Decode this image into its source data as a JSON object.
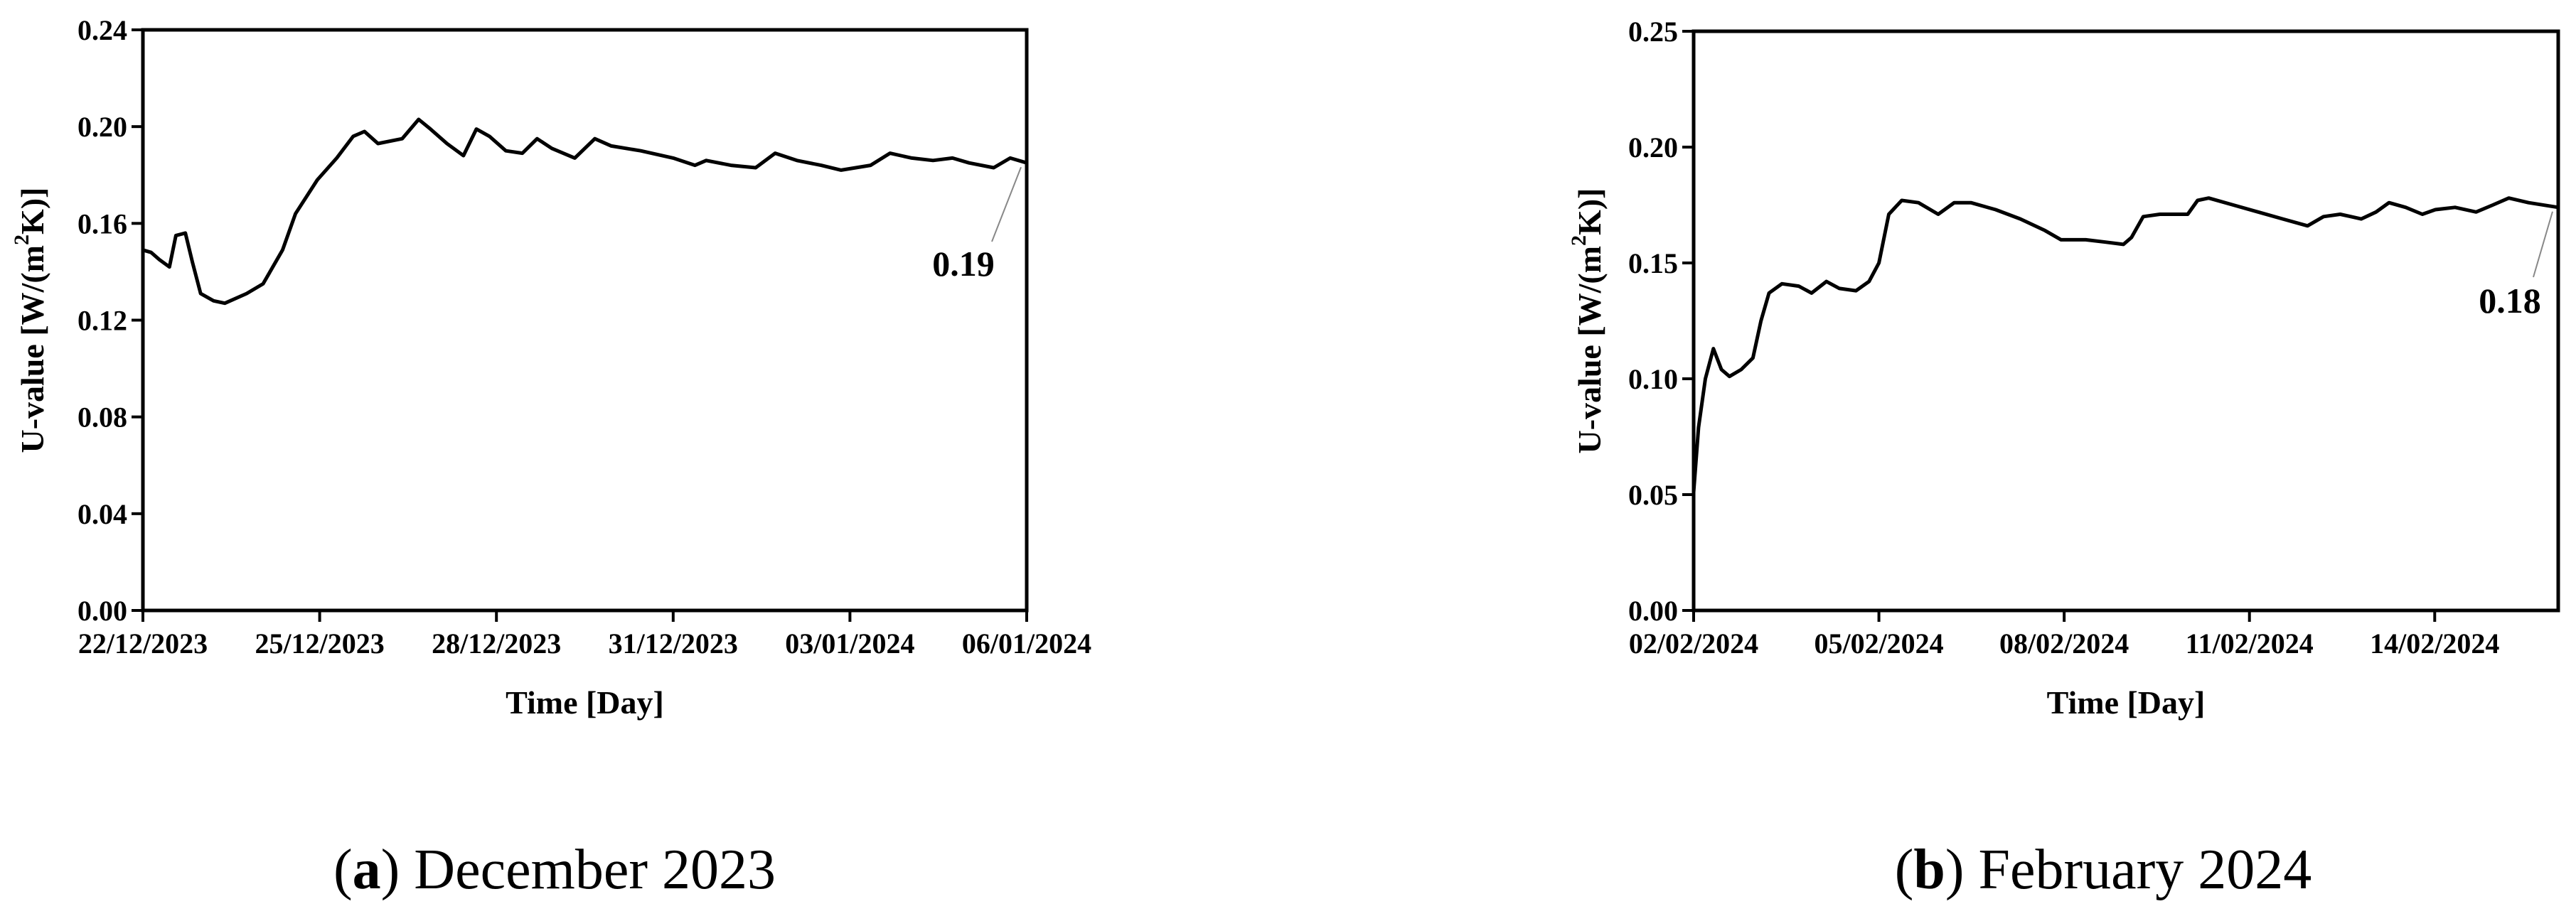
{
  "chart_data": [
    {
      "type": "line",
      "caption": [
        "(",
        "a",
        ") December 2023"
      ],
      "xlabel": "Time [Day]",
      "ylabel": [
        "U-value [W/(m",
        "2",
        "K)]"
      ],
      "annotation": "0.19",
      "color": "#000000",
      "xlim": [
        0,
        15
      ],
      "xticks": [
        {
          "value": 0,
          "label": "22/12/2023"
        },
        {
          "value": 3,
          "label": "25/12/2023"
        },
        {
          "value": 6,
          "label": "28/12/2023"
        },
        {
          "value": 9,
          "label": "31/12/2023"
        },
        {
          "value": 12,
          "label": "03/01/2024"
        },
        {
          "value": 15,
          "label": "06/01/2024"
        }
      ],
      "ylim": [
        0,
        0.24
      ],
      "yticks": [
        {
          "value": 0,
          "label": "0.00"
        },
        {
          "value": 0.04,
          "label": "0.04"
        },
        {
          "value": 0.08,
          "label": "0.08"
        },
        {
          "value": 0.12,
          "label": "0.12"
        },
        {
          "value": 0.16,
          "label": "0.16"
        },
        {
          "value": 0.2,
          "label": "0.20"
        },
        {
          "value": 0.24,
          "label": "0.24"
        }
      ],
      "x": [
        0,
        0.14,
        0.28,
        0.45,
        0.56,
        0.72,
        0.84,
        0.98,
        1.2,
        1.39,
        1.76,
        2.04,
        2.37,
        2.59,
        2.96,
        3.29,
        3.57,
        3.76,
        3.99,
        4.4,
        4.68,
        4.88,
        5.16,
        5.44,
        5.66,
        5.88,
        6.16,
        6.44,
        6.69,
        6.94,
        7.33,
        7.67,
        7.95,
        8.45,
        9.0,
        9.37,
        9.56,
        9.98,
        10.4,
        10.73,
        11.1,
        11.51,
        11.85,
        12.35,
        12.68,
        13.05,
        13.41,
        13.74,
        14.02,
        14.44,
        14.72,
        15
      ],
      "values": [
        0.149,
        0.148,
        0.145,
        0.142,
        0.155,
        0.156,
        0.144,
        0.131,
        0.128,
        0.127,
        0.131,
        0.135,
        0.149,
        0.164,
        0.178,
        0.187,
        0.196,
        0.198,
        0.193,
        0.195,
        0.203,
        0.199,
        0.193,
        0.188,
        0.199,
        0.196,
        0.19,
        0.189,
        0.195,
        0.191,
        0.187,
        0.195,
        0.192,
        0.19,
        0.187,
        0.184,
        0.186,
        0.184,
        0.183,
        0.189,
        0.186,
        0.184,
        0.182,
        0.184,
        0.189,
        0.187,
        0.186,
        0.187,
        0.185,
        0.183,
        0.187,
        0.185
      ]
    },
    {
      "type": "line",
      "caption": [
        "(",
        "b",
        ") February 2024"
      ],
      "xlabel": "Time [Day]",
      "ylabel": [
        "U-value [W/(m",
        "2",
        "K)]"
      ],
      "annotation": "0.18",
      "color": "#000000",
      "xlim": [
        0,
        14
      ],
      "xticks": [
        {
          "value": 0,
          "label": "02/02/2024"
        },
        {
          "value": 3,
          "label": "05/02/2024"
        },
        {
          "value": 6,
          "label": "08/02/2024"
        },
        {
          "value": 9,
          "label": "11/02/2024"
        },
        {
          "value": 12,
          "label": "14/02/2024"
        }
      ],
      "ylim": [
        0,
        0.25
      ],
      "yticks": [
        {
          "value": 0,
          "label": "0.00"
        },
        {
          "value": 0.05,
          "label": "0.05"
        },
        {
          "value": 0.1,
          "label": "0.10"
        },
        {
          "value": 0.15,
          "label": "0.15"
        },
        {
          "value": 0.2,
          "label": "0.20"
        },
        {
          "value": 0.25,
          "label": "0.25"
        }
      ],
      "x": [
        0,
        0.08,
        0.19,
        0.32,
        0.45,
        0.58,
        0.77,
        0.96,
        1.09,
        1.22,
        1.43,
        1.7,
        1.91,
        2.15,
        2.36,
        2.63,
        2.84,
        3.0,
        3.16,
        3.37,
        3.64,
        3.96,
        4.22,
        4.49,
        4.89,
        5.29,
        5.69,
        5.95,
        6.35,
        6.67,
        6.96,
        7.09,
        7.28,
        7.55,
        7.81,
        8.0,
        8.16,
        8.34,
        8.74,
        9.14,
        9.54,
        9.94,
        10.2,
        10.47,
        10.81,
        11.05,
        11.26,
        11.53,
        11.8,
        12.01,
        12.33,
        12.67,
        12.94,
        13.2,
        13.52,
        14
      ],
      "values": [
        0.051,
        0.079,
        0.1,
        0.113,
        0.104,
        0.101,
        0.104,
        0.109,
        0.125,
        0.137,
        0.141,
        0.14,
        0.137,
        0.142,
        0.139,
        0.138,
        0.142,
        0.15,
        0.171,
        0.177,
        0.176,
        0.171,
        0.176,
        0.176,
        0.173,
        0.169,
        0.164,
        0.16,
        0.16,
        0.159,
        0.158,
        0.161,
        0.17,
        0.171,
        0.171,
        0.171,
        0.177,
        0.178,
        0.175,
        0.172,
        0.169,
        0.166,
        0.17,
        0.171,
        0.169,
        0.172,
        0.176,
        0.174,
        0.171,
        0.173,
        0.174,
        0.172,
        0.175,
        0.178,
        0.176,
        0.174
      ]
    }
  ]
}
